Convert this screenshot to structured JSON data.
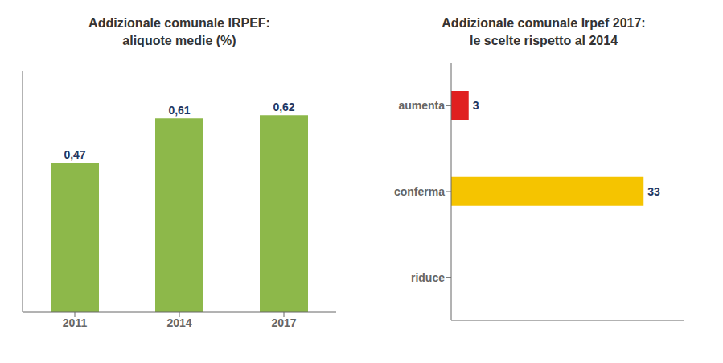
{
  "chart_data": [
    {
      "type": "bar",
      "title": "Addizionale comunale IRPEF:\naliquote medie (%)",
      "categories": [
        "2011",
        "2014",
        "2017"
      ],
      "values": [
        0.47,
        0.61,
        0.62
      ],
      "value_labels": [
        "0,47",
        "0,61",
        "0,62"
      ],
      "color": "#8db84a",
      "ylim": [
        0,
        0.76
      ],
      "data_labels": true,
      "tick_labels": "x"
    },
    {
      "type": "bar",
      "orientation": "horizontal",
      "title": "Addizionale comunale Irpef 2017:\nle scelte rispetto al 2014",
      "categories": [
        "aumenta",
        "conferma",
        "riduce"
      ],
      "values": [
        3,
        33,
        0
      ],
      "colors": [
        "#e02020",
        "#f5c400",
        "#f5c400"
      ],
      "xlim": [
        0,
        40
      ],
      "data_labels": true,
      "tick_labels": "y"
    }
  ]
}
